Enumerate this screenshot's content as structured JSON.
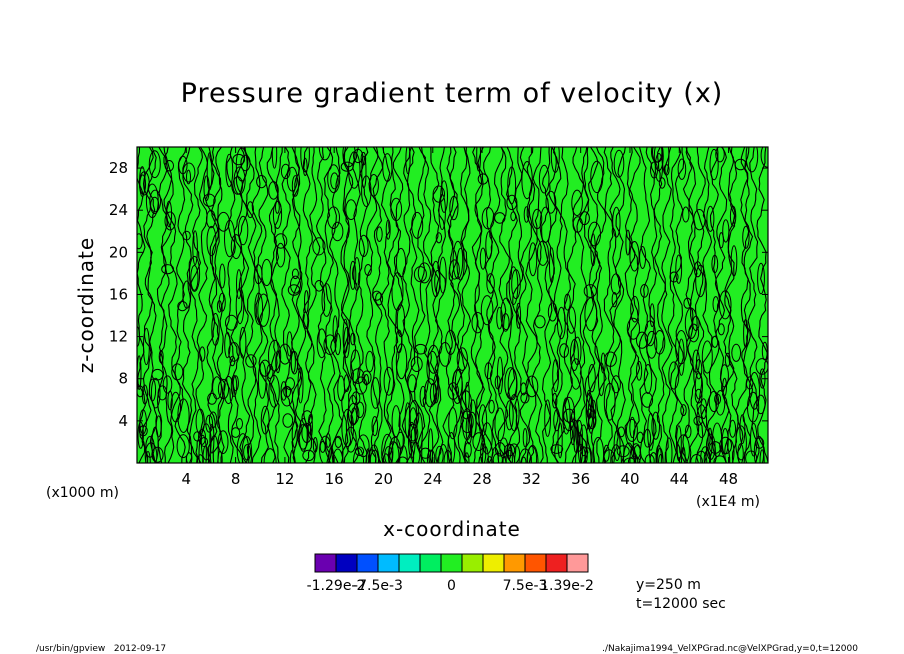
{
  "chart_data": {
    "type": "heatmap",
    "title": "Pressure gradient term of velocity (x)",
    "xlabel": "x-coordinate",
    "ylabel": "z-coordinate",
    "x_unit_left": "(x1000 m)",
    "x_unit_right": "(x1E4 m)",
    "xlim": [
      0,
      51.2
    ],
    "ylim": [
      0,
      30
    ],
    "xticks": [
      4,
      8,
      12,
      16,
      20,
      24,
      28,
      32,
      36,
      40,
      44,
      48
    ],
    "yticks": [
      4,
      8,
      12,
      16,
      20,
      24,
      28
    ],
    "dominant_fill_color": "#22ee22",
    "contour_color": "#000000",
    "colorbar": {
      "colors": [
        "#6a00b0",
        "#0000c0",
        "#0050ff",
        "#00bbff",
        "#00eec0",
        "#00ee60",
        "#22ee22",
        "#99ee00",
        "#eeee00",
        "#ff9900",
        "#ff5500",
        "#ee2020",
        "#ff9999"
      ],
      "tick_labels": [
        "-1.29e-2",
        "-7.5e-3",
        "0",
        "7.5e-3",
        "1.39e-2"
      ]
    },
    "annotations": [
      "y=250 m",
      "t=12000 sec"
    ]
  },
  "footer": {
    "left": "/usr/bin/gpview   2012-09-17",
    "right": "./Nakajima1994_VelXPGrad.nc@VelXPGrad,y=0,t=12000"
  }
}
